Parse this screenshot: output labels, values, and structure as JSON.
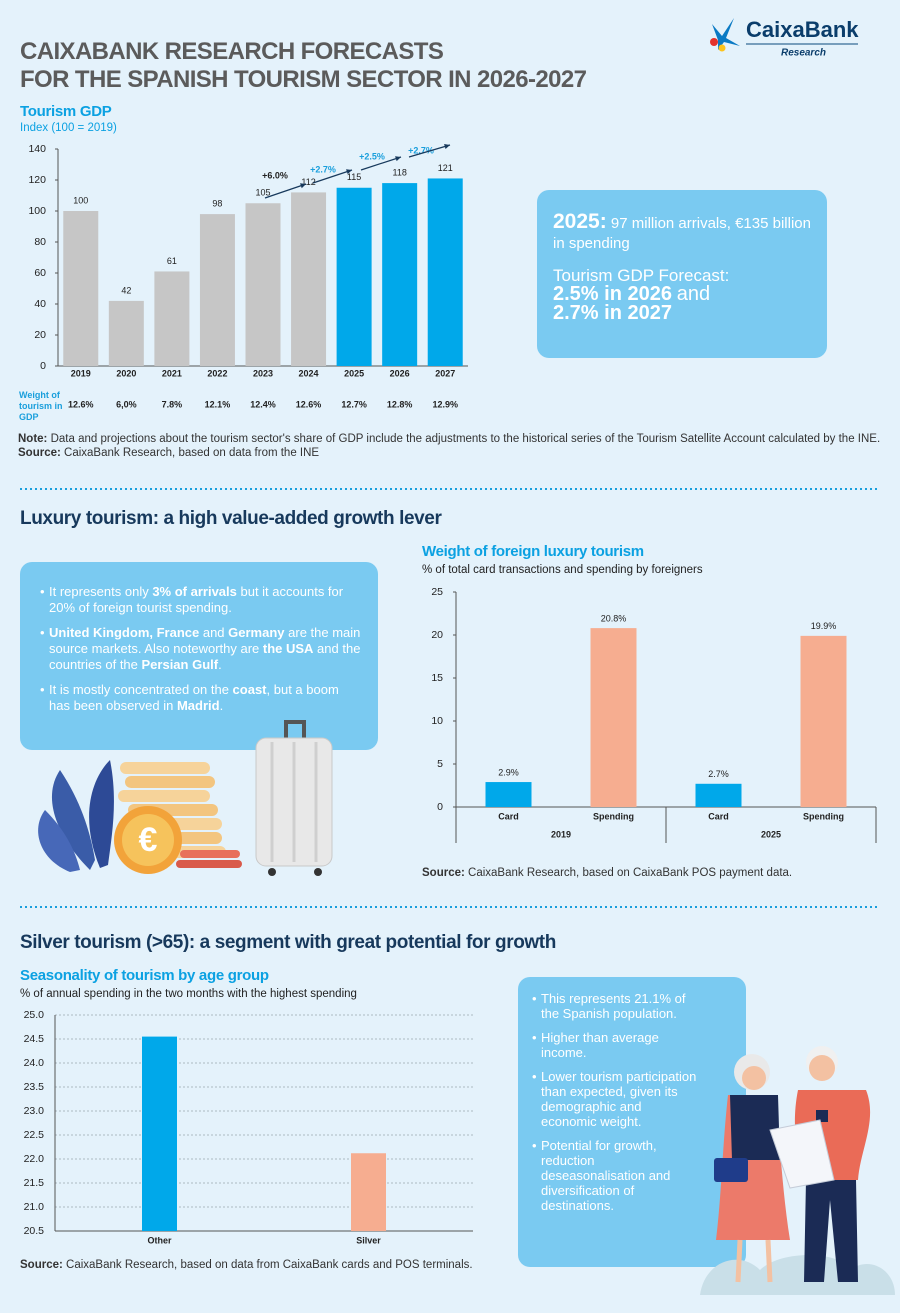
{
  "header": {
    "title_lines": [
      "CAIXABANK RESEARCH FORECASTS",
      "FOR THE SPANISH TOURISM SECTOR IN 2026-2027"
    ],
    "logo": "CaixaBank",
    "logo_sub": "Research"
  },
  "info_box": {
    "year": "2025:",
    "line1": "97 million arrivals, €135 billion in spending",
    "forecast_label": "Tourism GDP Forecast:",
    "forecast_1": "2.5% in 2026",
    "connector": "and",
    "forecast_2": "2.7% in 2027"
  },
  "luxury": {
    "heading": "Luxury tourism: a high value-added growth lever",
    "bullets": [
      [
        "It represents only ",
        {
          "text": "3% of arrivals",
          "bold": true
        },
        " but it accounts for 20% of foreign tourist spending."
      ],
      [
        {
          "text": "United Kingdom, France",
          "bold": true
        },
        " and ",
        {
          "text": "Germany",
          "bold": true
        },
        " are the main source markets. Also noteworthy are ",
        {
          "text": "the USA",
          "bold": true
        },
        " and the countries of the ",
        {
          "text": "Persian Gulf",
          "bold": true
        },
        "."
      ],
      [
        "It is mostly concentrated on the ",
        {
          "text": "coast",
          "bold": true
        },
        ", but a boom has been observed in ",
        {
          "text": "Madrid",
          "bold": true
        },
        "."
      ]
    ]
  },
  "silver": {
    "heading": "Silver tourism (>65): a segment with great potential for growth",
    "bullets": [
      [
        "This represents 21.1% of the Spanish population."
      ],
      [
        "Higher than average income."
      ],
      [
        "Lower tourism participation than expected, given its demographic and economic weight."
      ],
      [
        "Potential for growth, reduction deseasonalisation and diversification of destinations."
      ]
    ]
  },
  "chart_data": [
    {
      "type": "bar",
      "title": "Tourism GDP",
      "subtitle": "Index (100 = 2019)",
      "categories": [
        "2019",
        "2020",
        "2021",
        "2022",
        "2023",
        "2024",
        "2025",
        "2026",
        "2027"
      ],
      "values": [
        100,
        42,
        61,
        98,
        105,
        112,
        115,
        118,
        121
      ],
      "colors": [
        "#c6c6c6",
        "#c6c6c6",
        "#c6c6c6",
        "#c6c6c6",
        "#c6c6c6",
        "#c6c6c6",
        "#00a8ea",
        "#00a8ea",
        "#00a8ea"
      ],
      "ylim": [
        0,
        140
      ],
      "yticks": [
        0,
        20,
        40,
        60,
        80,
        100,
        120,
        140
      ],
      "grid": false,
      "annotations": [
        "+6.0%",
        "+2.7%",
        "+2.5%",
        "+2.7%"
      ],
      "annotation_colors": [
        "#222222",
        "#1a9fdc",
        "#1a9fdc",
        "#1a9fdc"
      ],
      "row_label": "Weight of tourism in GDP",
      "row_values": [
        "12.6%",
        "6,0%",
        "7.8%",
        "12.1%",
        "12.4%",
        "12.6%",
        "12.7%",
        "12.8%",
        "12.9%"
      ],
      "row_colors": [
        "#222222",
        "#222222",
        "#222222",
        "#222222",
        "#222222",
        "#222222",
        "#1a9fdc",
        "#1a9fdc",
        "#1a9fdc"
      ],
      "note_label": "Note:",
      "note": "Data and projections about the tourism sector's share of GDP include the adjustments to the historical series of the Tourism Satellite Account calculated by the INE.",
      "source_label": "Source:",
      "source": "CaixaBank Research, based on data from the INE"
    },
    {
      "type": "grouped_bar",
      "title": "Weight of foreign luxury tourism",
      "subtitle": "% of total card transactions and spending by foreigners",
      "categories": [
        "2019",
        "2025"
      ],
      "series": [
        {
          "name": "Card",
          "color": "#00a8ea",
          "values": [
            2.9,
            2.7
          ],
          "value_labels": [
            "2.9%",
            "2.7%"
          ]
        },
        {
          "name": "Spending",
          "color": "#f6ad90",
          "values": [
            20.8,
            19.9
          ],
          "value_labels": [
            "20.8%",
            "19.9%"
          ]
        }
      ],
      "ylim": [
        0,
        25
      ],
      "yticks": [
        0,
        5,
        10,
        15,
        20,
        25
      ],
      "grid": false,
      "source_label": "Source:",
      "source": "CaixaBank Research, based on CaixaBank POS payment data."
    },
    {
      "type": "bar",
      "title": "Seasonality of tourism by age group",
      "subtitle": "% of annual spending in the two months with the highest spending",
      "categories": [
        "Other",
        "Silver"
      ],
      "values": [
        24.55,
        22.12
      ],
      "colors": [
        "#00a8ea",
        "#f6ad90"
      ],
      "ylim": [
        20.5,
        25
      ],
      "yticks": [
        {
          "value": 25,
          "label": "25.0"
        },
        24.5,
        {
          "value": 24,
          "label": "24.0"
        },
        23.5,
        {
          "value": 23,
          "label": "23.0"
        },
        22.5,
        {
          "value": 22,
          "label": "22.0"
        },
        21.5,
        {
          "value": 21,
          "label": "21.0"
        },
        20.5
      ],
      "grid": true,
      "source_label": "Source:",
      "source": "CaixaBank Research, based on data from CaixaBank cards and POS terminals."
    }
  ]
}
